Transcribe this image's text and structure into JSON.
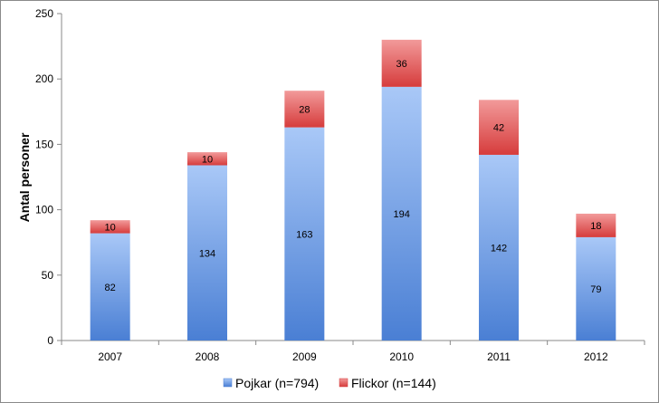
{
  "chart_data": {
    "type": "bar",
    "stacked": true,
    "categories": [
      "2007",
      "2008",
      "2009",
      "2010",
      "2011",
      "2012"
    ],
    "series": [
      {
        "name": "Pojkar (n=794)",
        "values": [
          82,
          134,
          163,
          194,
          142,
          79
        ],
        "color": "#5b8fdc"
      },
      {
        "name": "Flickor (n=144)",
        "values": [
          10,
          10,
          28,
          36,
          42,
          18
        ],
        "color": "#d94f4f"
      }
    ],
    "ylabel": "Antal personer",
    "xlabel": "",
    "ylim": [
      0,
      250
    ],
    "yticks": [
      0,
      50,
      100,
      150,
      200,
      250
    ],
    "data_labels": true,
    "grid": false,
    "legend": "bottom"
  }
}
